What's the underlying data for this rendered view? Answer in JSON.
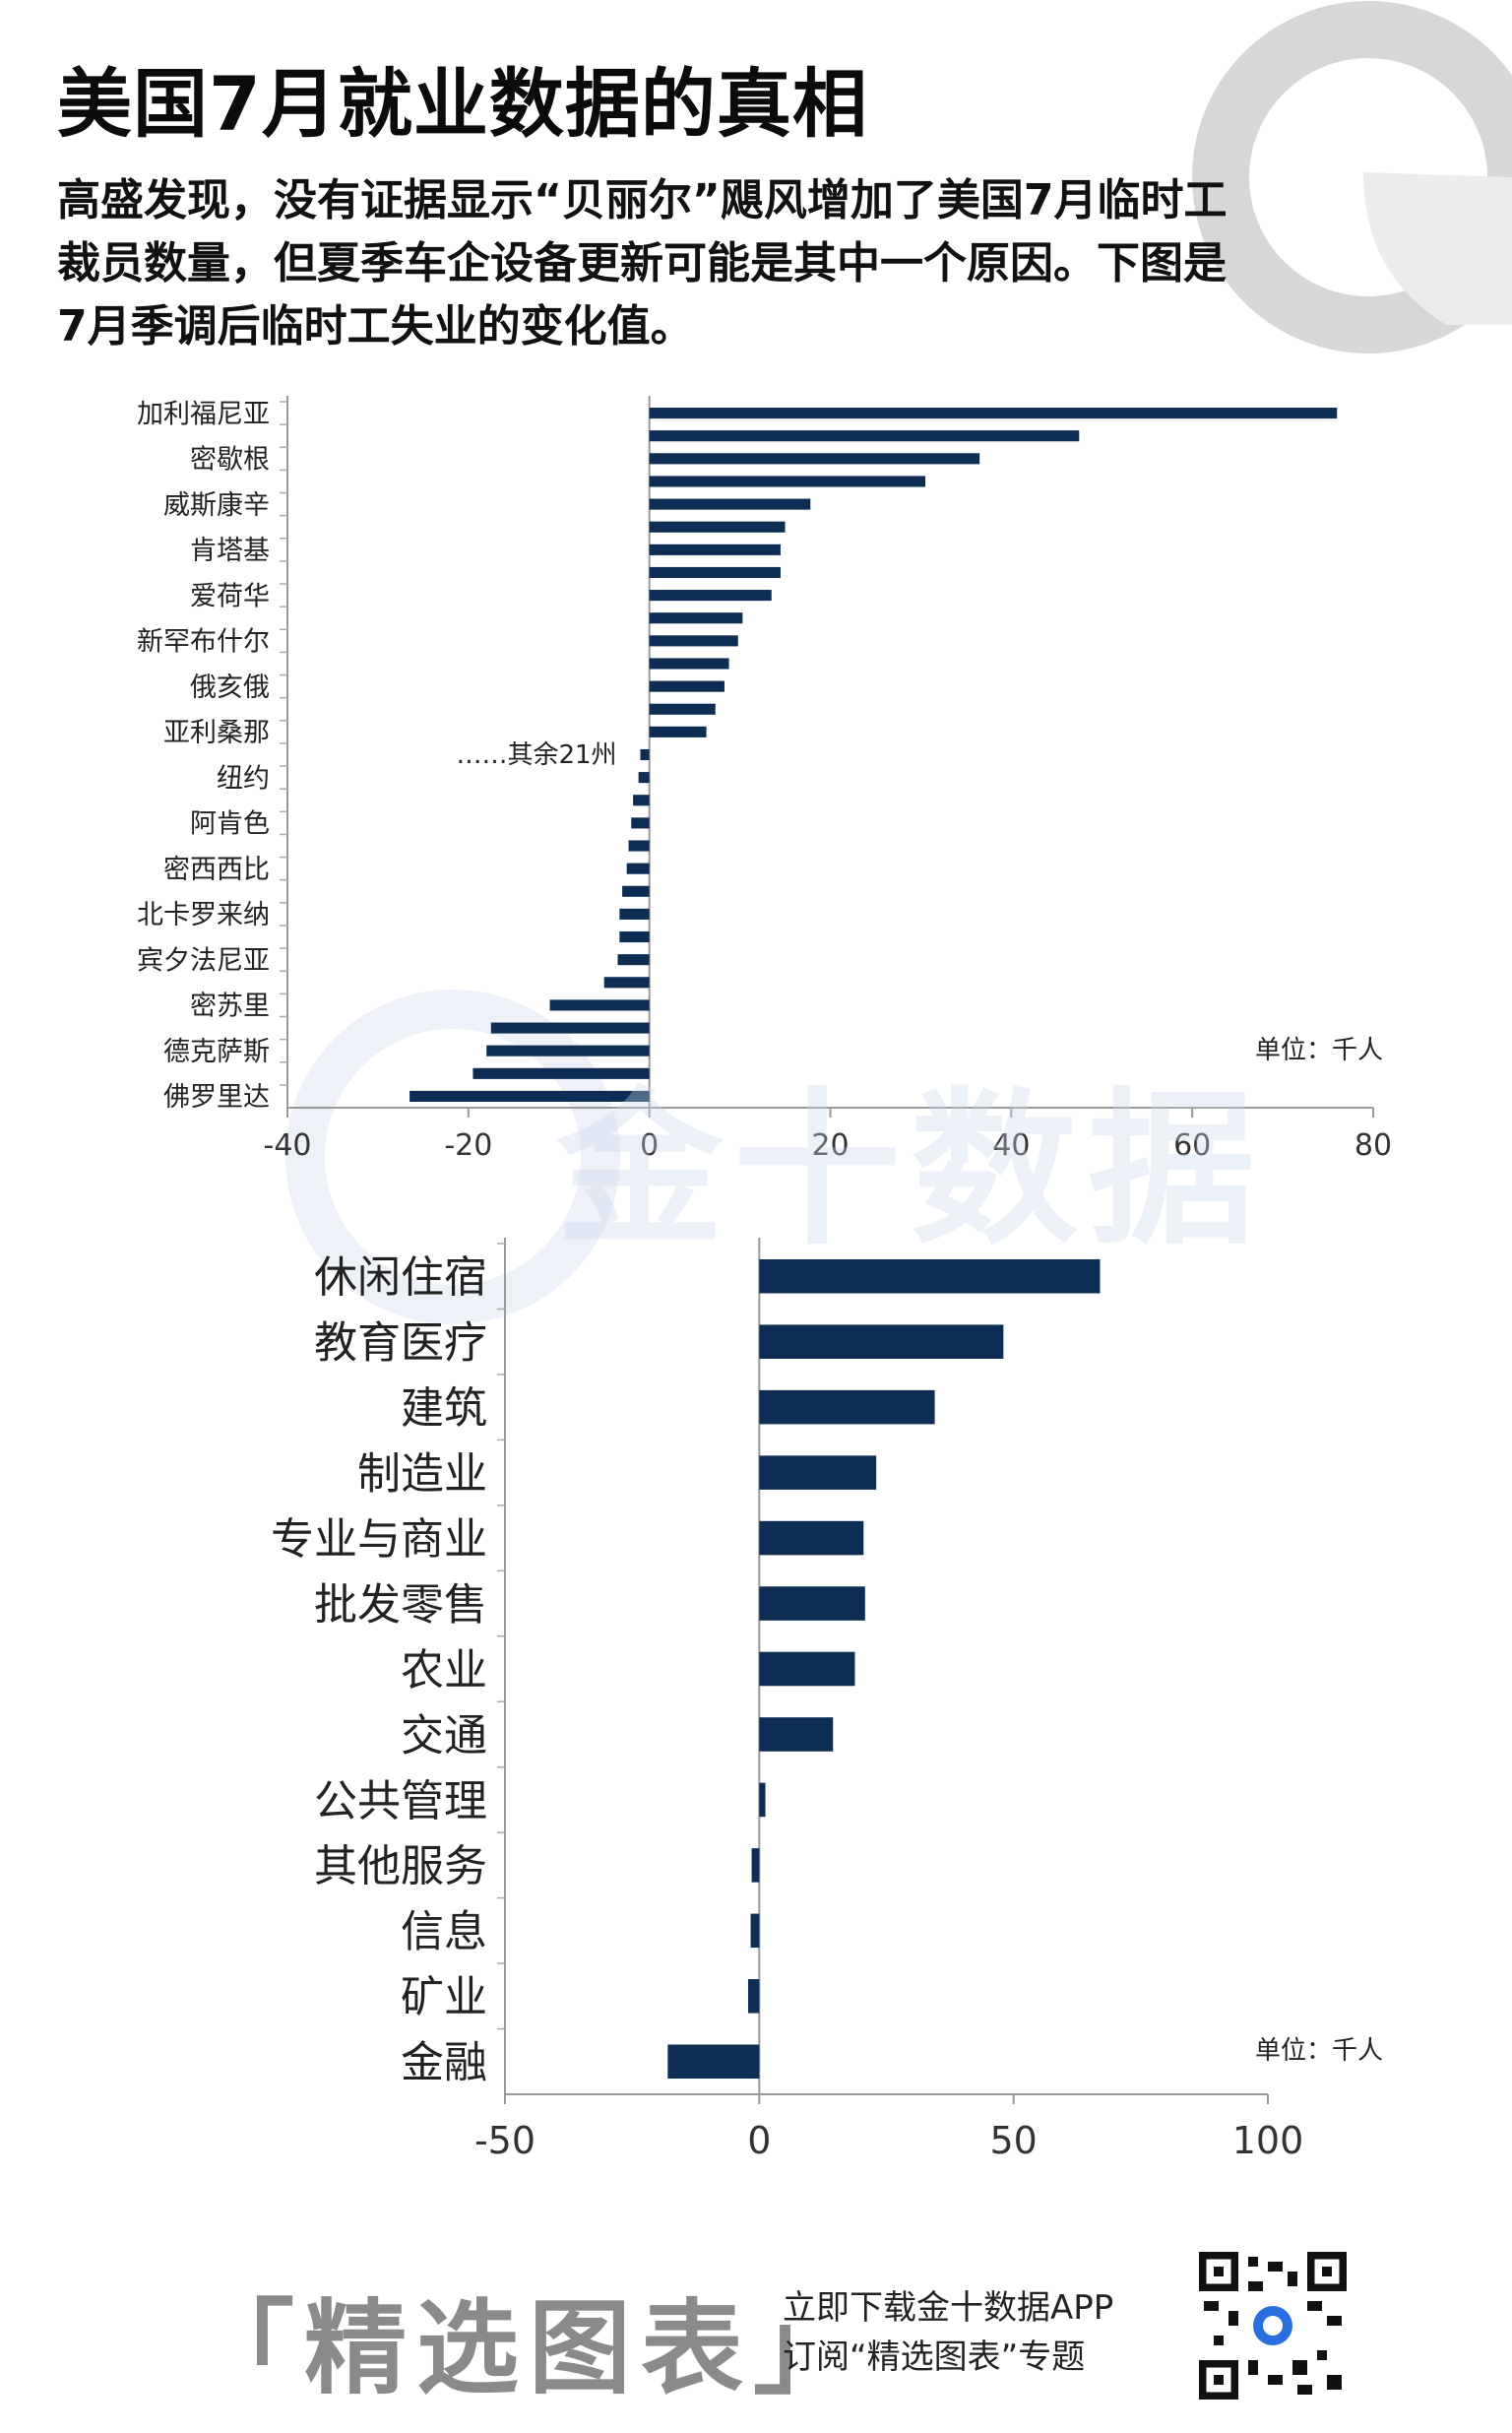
{
  "header": {
    "title": "美国7月就业数据的真相",
    "subtitle": "高盛发现，没有证据显示“贝丽尔”飓风增加了美国7月临时工裁员数量，但夏季车企设备更新可能是其中一个原因。下图是7月季调后临时工失业的变化值。"
  },
  "watermark": {
    "text": "金十数据"
  },
  "chart_data": [
    {
      "type": "bar",
      "orientation": "horizontal",
      "categories": [
        "加利福尼亚",
        "",
        "密歇根",
        "",
        "威斯康辛",
        "",
        "肯塔基",
        "",
        "爱荷华",
        "",
        "新罕布什尔",
        "",
        "俄亥俄",
        "",
        "亚利桑那",
        "",
        "纽约",
        "",
        "阿肯色",
        "",
        "密西西比",
        "",
        "北卡罗来纳",
        "",
        "宾夕法尼亚",
        "",
        "密苏里",
        "",
        "德克萨斯",
        "",
        "佛罗里达"
      ],
      "values": [
        76,
        47.5,
        36.5,
        30.5,
        17.8,
        15,
        14.5,
        14.5,
        13.5,
        10.3,
        9.8,
        8.8,
        8.3,
        7.3,
        6.3,
        -1,
        -1.2,
        -1.8,
        -2,
        -2.3,
        -2.5,
        -3,
        -3.3,
        -3.3,
        -3.5,
        -5,
        -11,
        -17.5,
        -18,
        -19.5,
        -26.5
      ],
      "xlim": [
        -40,
        80
      ],
      "xticks": [
        -40,
        -20,
        0,
        20,
        40,
        60,
        80
      ],
      "annotation": "……其余21州",
      "unit_label": "单位：千人",
      "bar_color": "#0d2d54"
    },
    {
      "type": "bar",
      "orientation": "horizontal",
      "categories": [
        "休闲住宿",
        "教育医疗",
        "建筑",
        "制造业",
        "专业与商业",
        "批发零售",
        "农业",
        "交通",
        "公共管理",
        "其他服务",
        "信息",
        "矿业",
        "金融"
      ],
      "values": [
        67,
        48,
        34.5,
        23,
        20.5,
        20.8,
        18.8,
        14.5,
        1.2,
        -1.5,
        -1.7,
        -2.2,
        -18
      ],
      "xlim": [
        -50,
        100
      ],
      "xticks": [
        -50,
        0,
        50,
        100
      ],
      "unit_label": "单位：千人",
      "bar_color": "#0d2d54"
    }
  ],
  "footer": {
    "brand": "「精选图表」",
    "line1": "立即下载金十数据APP",
    "line2": "订阅“精选图表”专题"
  }
}
